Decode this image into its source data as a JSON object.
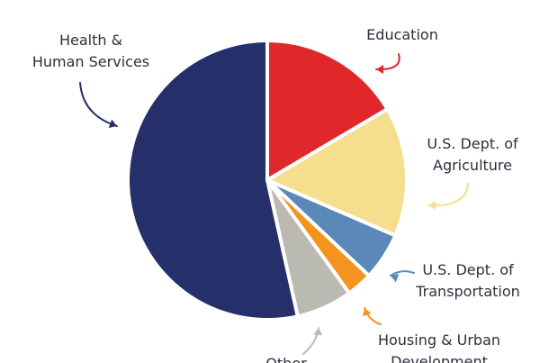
{
  "chart_data": {
    "type": "pie",
    "title": "",
    "slices": [
      {
        "label": "Education",
        "lines": [
          "Education"
        ],
        "value": 16.5,
        "color": "#e02729"
      },
      {
        "label": "U.S. Dept. of Agriculture",
        "lines": [
          "U.S. Dept. of",
          "Agriculture"
        ],
        "value": 15.0,
        "color": "#f5df8e"
      },
      {
        "label": "U.S. Dept. of Transportation",
        "lines": [
          "U.S. Dept. of",
          "Transportation"
        ],
        "value": 5.5,
        "color": "#5a88b8"
      },
      {
        "label": "Housing & Urban Development",
        "lines": [
          "Housing & Urban",
          "Development"
        ],
        "value": 3.0,
        "color": "#f4931e"
      },
      {
        "label": "Other",
        "lines": [
          "Other"
        ],
        "value": 6.5,
        "color": "#bbbab2"
      },
      {
        "label": "Health & Human Services",
        "lines": [
          "Health &",
          "Human Services"
        ],
        "value": 53.5,
        "color": "#252f6a"
      }
    ]
  }
}
